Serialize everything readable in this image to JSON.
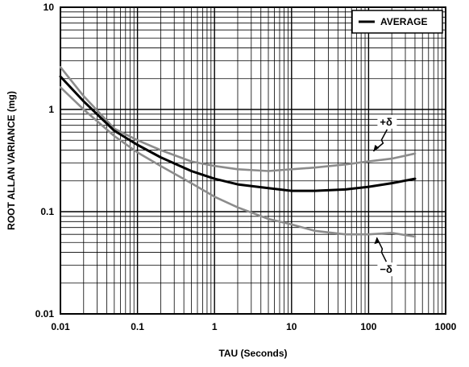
{
  "chart_data": {
    "type": "line",
    "xlabel": "TAU (Seconds)",
    "ylabel": "ROOT ALLAN VARIANCE (mg)",
    "x_scale": "log",
    "y_scale": "log",
    "xlim": [
      0.01,
      1000
    ],
    "ylim": [
      0.01,
      10
    ],
    "grid": true,
    "x_ticks": [
      "0.01",
      "0.1",
      "1",
      "10",
      "100",
      "1000"
    ],
    "y_ticks": [
      "0.01",
      "0.1",
      "1",
      "10"
    ],
    "legend": {
      "position": "top-right",
      "entries": [
        "AVERAGE"
      ]
    },
    "series": [
      {
        "name": "AVERAGE",
        "color": "#000000",
        "x": [
          0.01,
          0.02,
          0.05,
          0.1,
          0.2,
          0.5,
          1,
          2,
          5,
          10,
          20,
          50,
          100,
          200,
          400
        ],
        "y": [
          2.1,
          1.2,
          0.62,
          0.45,
          0.34,
          0.25,
          0.21,
          0.185,
          0.17,
          0.16,
          0.16,
          0.165,
          0.175,
          0.19,
          0.21
        ]
      },
      {
        "color": "#8c8c8c",
        "x": [
          0.01,
          0.02,
          0.05,
          0.1,
          0.2,
          0.5,
          1,
          2,
          5,
          10,
          20,
          50,
          100,
          200,
          400
        ],
        "y": [
          2.6,
          1.35,
          0.65,
          0.5,
          0.4,
          0.31,
          0.28,
          0.26,
          0.25,
          0.26,
          0.27,
          0.29,
          0.31,
          0.33,
          0.37
        ]
      },
      {
        "color": "#8c8c8c",
        "x": [
          0.01,
          0.02,
          0.05,
          0.1,
          0.2,
          0.5,
          1,
          2,
          5,
          10,
          20,
          50,
          100,
          200,
          400
        ],
        "y": [
          1.65,
          1.0,
          0.55,
          0.38,
          0.28,
          0.19,
          0.14,
          0.11,
          0.085,
          0.075,
          0.065,
          0.06,
          0.06,
          0.062,
          0.057
        ]
      }
    ],
    "annotations": [
      {
        "text": "+δ",
        "x": 100,
        "y": 0.75
      },
      {
        "text": "−δ",
        "x": 100,
        "y": 0.027
      }
    ]
  }
}
